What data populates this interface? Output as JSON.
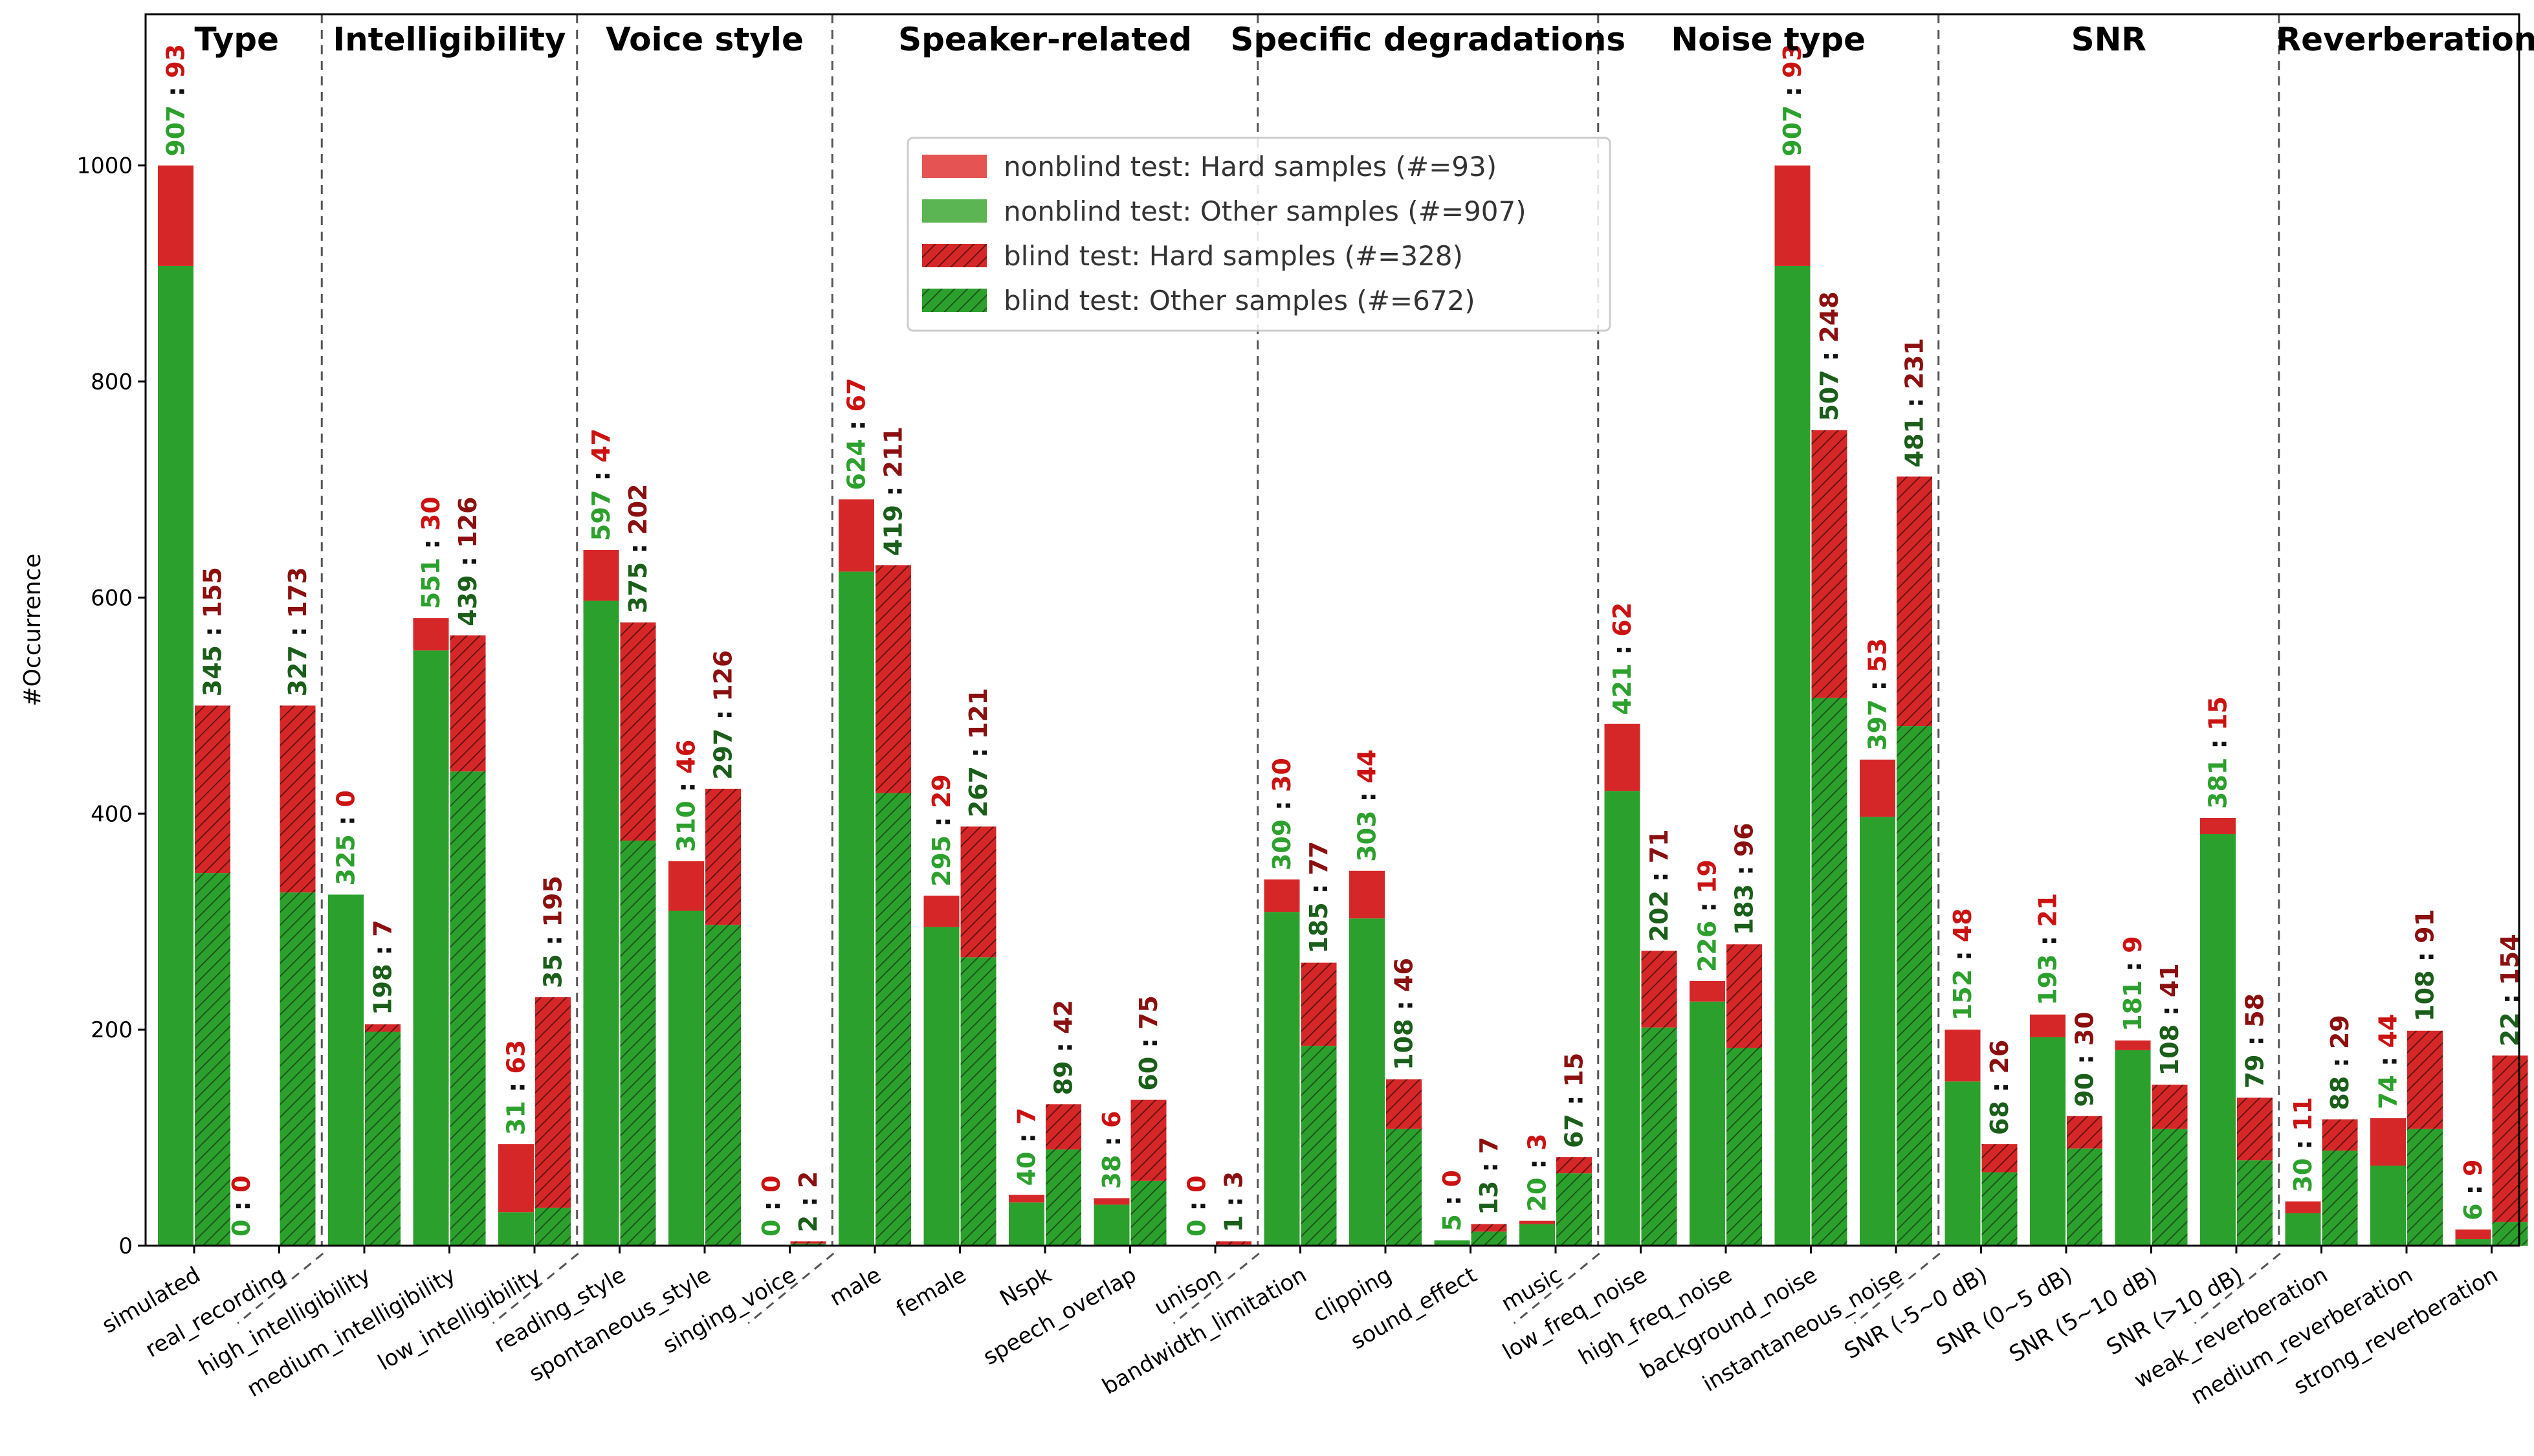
{
  "chart_data": {
    "type": "bar",
    "ylabel": "#Occurrence",
    "xlabel": "",
    "ylim": [
      0,
      1140
    ],
    "yticks": [
      0,
      200,
      400,
      600,
      800,
      1000
    ],
    "grid": false,
    "legend_position": "top-center",
    "colors": {
      "nonblind_hard": "#d62728",
      "nonblind_other": "#2ca02c",
      "blind_hard": "#d62728",
      "blind_other": "#2ca02c",
      "label_nonblind_other": "#2ca02c",
      "label_nonblind_hard": "#cc1111",
      "label_blind_other": "#1a5e1a",
      "label_blind_hard": "#8b0f0f",
      "separator": "#555555"
    },
    "legend": [
      {
        "name": "nonblind test: Hard samples (#=93)",
        "style": "solid",
        "color": "#e55353"
      },
      {
        "name": "nonblind test: Other samples (#=907)",
        "style": "solid",
        "color": "#5ab552"
      },
      {
        "name": "blind test: Hard samples (#=328)",
        "style": "hatched",
        "color": "#d62728"
      },
      {
        "name": "blind test: Other samples (#=672)",
        "style": "hatched",
        "color": "#2ca02c"
      }
    ],
    "groups": [
      {
        "title": "Type",
        "start": 0,
        "end": 1
      },
      {
        "title": "Intelligibility",
        "start": 2,
        "end": 4
      },
      {
        "title": "Voice style",
        "start": 5,
        "end": 7
      },
      {
        "title": "Speaker-related",
        "start": 8,
        "end": 12
      },
      {
        "title": "Specific degradations",
        "start": 13,
        "end": 16
      },
      {
        "title": "Noise type",
        "start": 17,
        "end": 20
      },
      {
        "title": "SNR",
        "start": 21,
        "end": 24
      },
      {
        "title": "Reverberation",
        "start": 25,
        "end": 27
      }
    ],
    "categories": [
      "simulated",
      "real_recording",
      "high_intelligibility",
      "medium_intelligibility",
      "low_intelligibility",
      "reading_style",
      "spontaneous_style",
      "singing_voice",
      "male",
      "female",
      "Nspk",
      "speech_overlap",
      "unison",
      "bandwidth_limitation",
      "clipping",
      "sound_effect",
      "music",
      "low_freq_noise",
      "high_freq_noise",
      "background_noise",
      "instantaneous_noise",
      "SNR (-5~0 dB)",
      "SNR (0~5 dB)",
      "SNR (5~10 dB)",
      "SNR (>10 dB)",
      "weak_reverberation",
      "medium_reverberation",
      "strong_reverberation"
    ],
    "series": [
      {
        "name": "nonblind test: Other samples (#=907)",
        "values": [
          907,
          0,
          325,
          551,
          31,
          597,
          310,
          0,
          624,
          295,
          40,
          38,
          0,
          309,
          303,
          5,
          20,
          421,
          226,
          907,
          397,
          152,
          193,
          181,
          381,
          30,
          74,
          6
        ]
      },
      {
        "name": "nonblind test: Hard samples (#=93)",
        "values": [
          93,
          0,
          0,
          30,
          63,
          47,
          46,
          0,
          67,
          29,
          7,
          6,
          0,
          30,
          44,
          0,
          3,
          62,
          19,
          93,
          53,
          48,
          21,
          9,
          15,
          11,
          44,
          9
        ]
      },
      {
        "name": "blind test: Other samples (#=672)",
        "values": [
          345,
          327,
          198,
          439,
          35,
          375,
          297,
          2,
          419,
          267,
          89,
          60,
          1,
          185,
          108,
          13,
          67,
          202,
          183,
          507,
          481,
          68,
          90,
          108,
          79,
          88,
          108,
          22
        ]
      },
      {
        "name": "blind test: Hard samples (#=328)",
        "values": [
          155,
          173,
          7,
          126,
          195,
          202,
          126,
          2,
          211,
          121,
          42,
          75,
          3,
          77,
          46,
          7,
          15,
          71,
          96,
          248,
          231,
          26,
          30,
          41,
          58,
          29,
          91,
          154
        ]
      }
    ],
    "show_nonblind_bar": [
      true,
      false,
      true,
      true,
      true,
      true,
      true,
      false,
      true,
      true,
      true,
      true,
      false,
      true,
      true,
      true,
      true,
      true,
      true,
      true,
      true,
      true,
      true,
      true,
      true,
      true,
      true,
      true
    ],
    "show_blind_bar": [
      true,
      true,
      true,
      true,
      true,
      true,
      true,
      true,
      true,
      true,
      true,
      true,
      true,
      true,
      true,
      true,
      true,
      true,
      true,
      true,
      true,
      true,
      true,
      true,
      true,
      true,
      true,
      true
    ],
    "nonblind_labels": [
      "907 : 93",
      "",
      "325 : 0",
      "551 : 30",
      "31 : 63",
      "597 : 47",
      "310 : 46",
      "0 : 0",
      "624 : 67",
      "295 : 29",
      "40 : 7",
      "38 : 6",
      "0 : 0",
      "309 : 30",
      "303 : 44",
      "5 : 0",
      "20 : 3",
      "421 : 62",
      "226 : 19",
      "907 : 93",
      "397 : 53",
      "152 : 48",
      "193 : 21",
      "181 : 9",
      "381 : 15",
      "30 : 11",
      "74 : 44",
      "6 : 9"
    ],
    "blind_labels": [
      "345 : 155",
      "327 : 173",
      "198 : 7",
      "439 : 126",
      "35 : 195",
      "375 : 202",
      "297 : 126",
      "2 : 2",
      "419 : 211",
      "267 : 121",
      "89 : 42",
      "60 : 75",
      "1 : 3",
      "185 : 77",
      "108 : 46",
      "13 : 7",
      "67 : 15",
      "202 : 71",
      "183 : 96",
      "507 : 248",
      "481 : 231",
      "68 : 26",
      "90 : 30",
      "108 : 41",
      "79 : 58",
      "88 : 29",
      "108 : 91",
      "22 : 154"
    ],
    "extra_labels": [
      {
        "after_index": 0,
        "text": "0 : 0"
      }
    ]
  }
}
